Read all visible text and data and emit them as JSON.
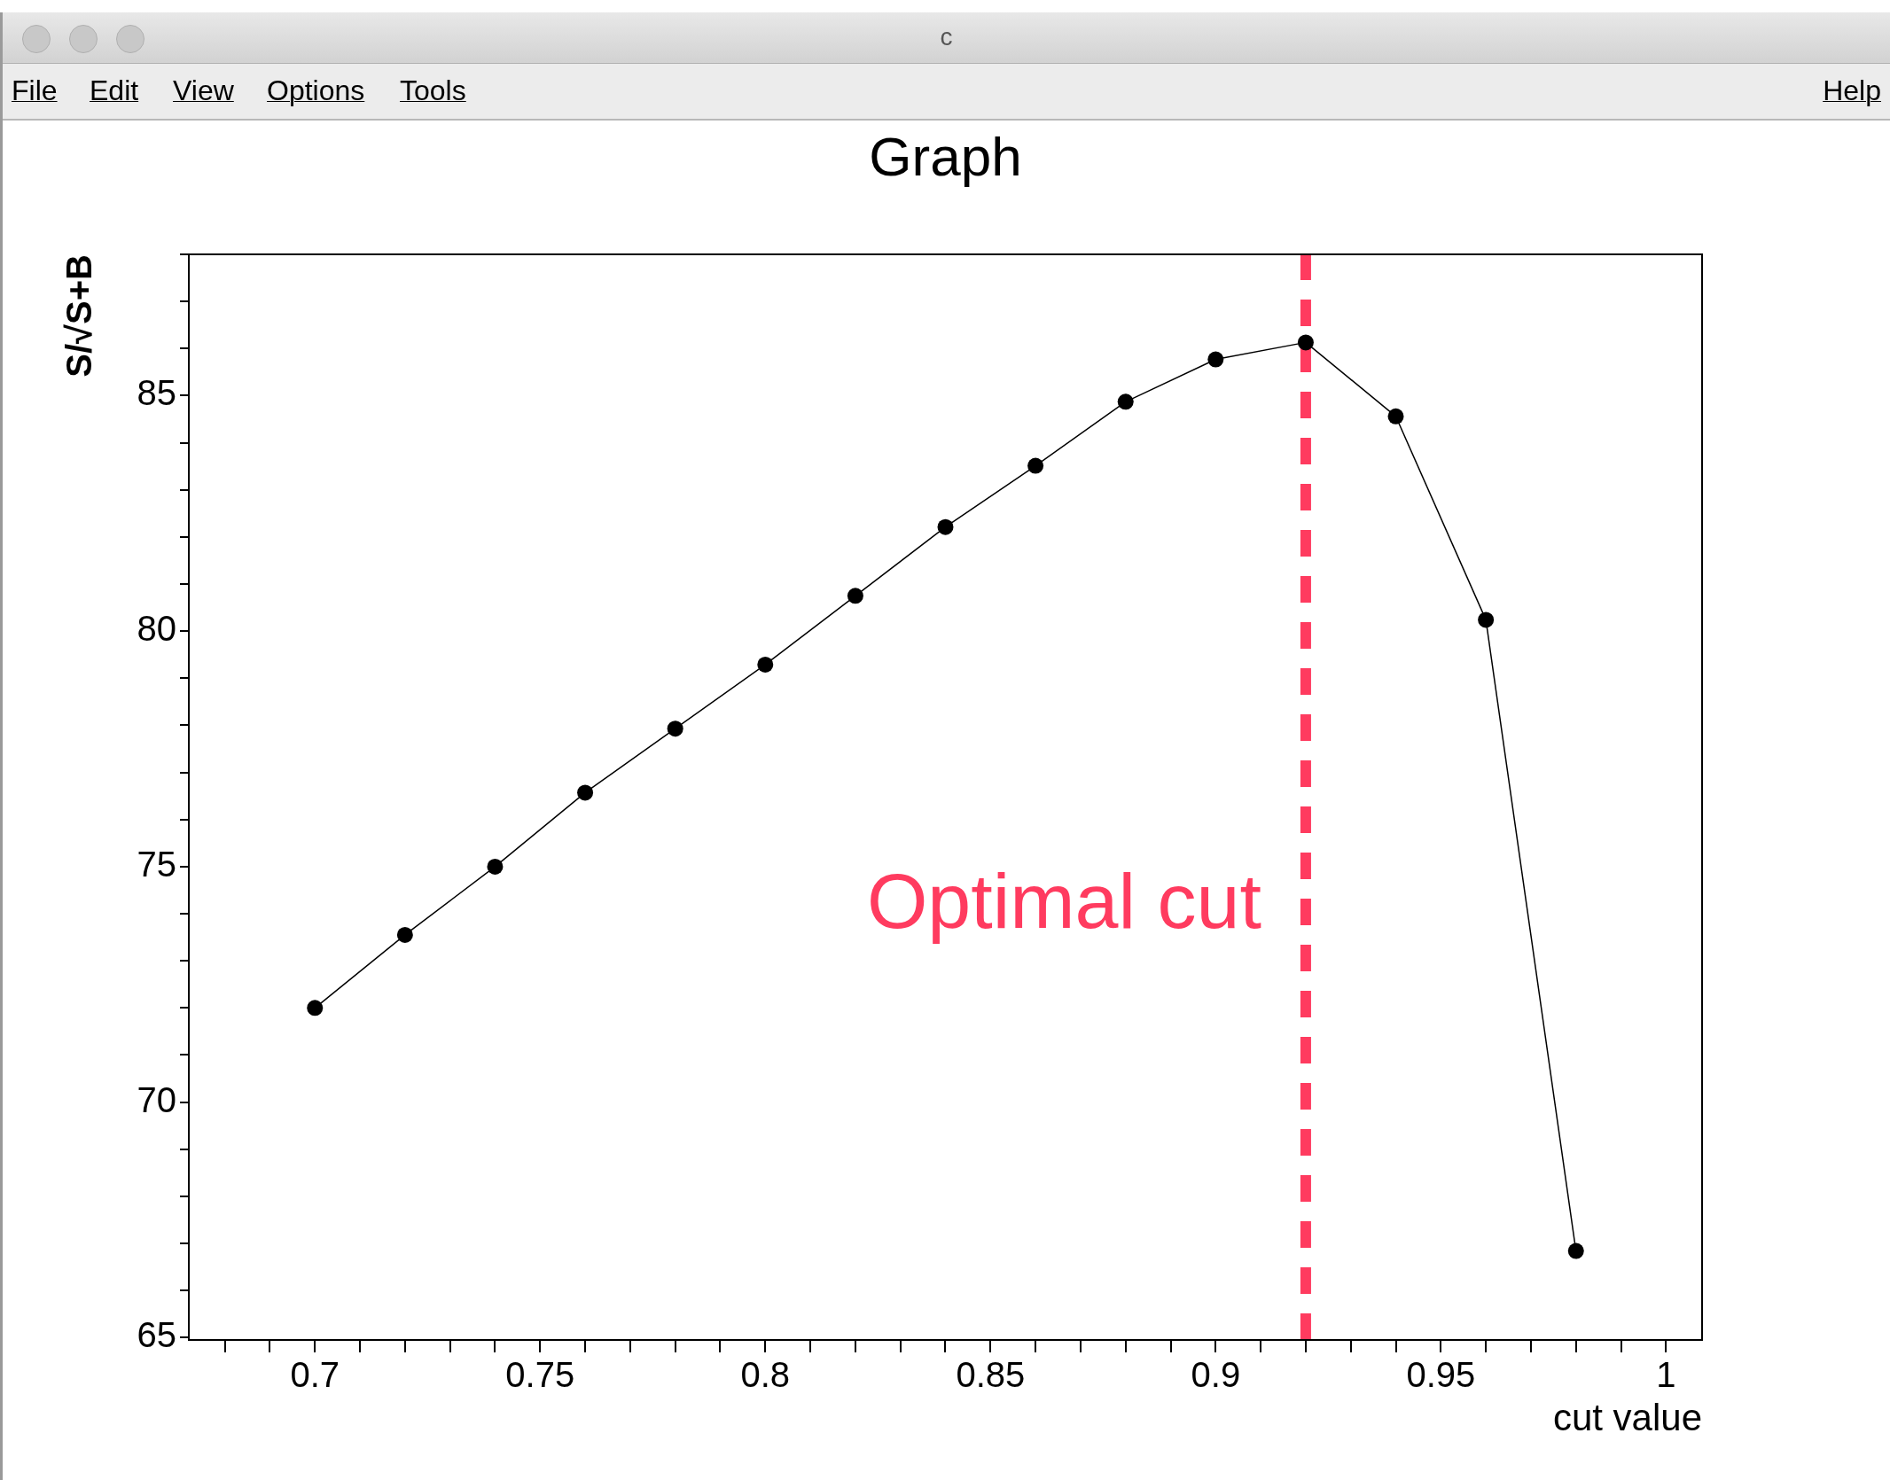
{
  "chart_data": {
    "type": "line",
    "title": "Graph",
    "xlabel": "cut value",
    "ylabel": "S/√S+B",
    "x": [
      0.7,
      0.72,
      0.74,
      0.76,
      0.78,
      0.8,
      0.82,
      0.84,
      0.86,
      0.88,
      0.9,
      0.92,
      0.94,
      0.96,
      0.98
    ],
    "series": [
      {
        "color": "#000000",
        "values": [
          72.0,
          73.55,
          75.0,
          76.57,
          77.93,
          79.29,
          80.75,
          82.21,
          83.51,
          84.87,
          85.77,
          86.13,
          84.56,
          80.24,
          66.84
        ]
      }
    ],
    "xlim": [
      0.672,
      1.008
    ],
    "xticks": [
      {
        "value": 0.68,
        "label": null
      },
      {
        "value": 0.69,
        "label": null
      },
      0.7,
      {
        "value": 0.71,
        "label": null
      },
      {
        "value": 0.72,
        "label": null
      },
      {
        "value": 0.73,
        "label": null
      },
      {
        "value": 0.74,
        "label": null
      },
      0.75,
      {
        "value": 0.76,
        "label": null
      },
      {
        "value": 0.77,
        "label": null
      },
      {
        "value": 0.78,
        "label": null
      },
      {
        "value": 0.79,
        "label": null
      },
      0.8,
      {
        "value": 0.81,
        "label": null
      },
      {
        "value": 0.82,
        "label": null
      },
      {
        "value": 0.83,
        "label": null
      },
      {
        "value": 0.84,
        "label": null
      },
      0.85,
      {
        "value": 0.86,
        "label": null
      },
      {
        "value": 0.87,
        "label": null
      },
      {
        "value": 0.88,
        "label": null
      },
      {
        "value": 0.89,
        "label": null
      },
      0.9,
      {
        "value": 0.91,
        "label": null
      },
      {
        "value": 0.92,
        "label": null
      },
      {
        "value": 0.93,
        "label": null
      },
      {
        "value": 0.94,
        "label": null
      },
      0.95,
      {
        "value": 0.96,
        "label": null
      },
      {
        "value": 0.97,
        "label": null
      },
      {
        "value": 0.98,
        "label": null
      },
      {
        "value": 0.99,
        "label": null
      },
      1
    ],
    "ylim": [
      64.95,
      88.0
    ],
    "yticks": [
      65,
      {
        "value": 66,
        "label": null
      },
      {
        "value": 67,
        "label": null
      },
      {
        "value": 68,
        "label": null
      },
      {
        "value": 69,
        "label": null
      },
      70,
      {
        "value": 71,
        "label": null
      },
      {
        "value": 72,
        "label": null
      },
      {
        "value": 73,
        "label": null
      },
      {
        "value": 74,
        "label": null
      },
      75,
      {
        "value": 76,
        "label": null
      },
      {
        "value": 77,
        "label": null
      },
      {
        "value": 78,
        "label": null
      },
      {
        "value": 79,
        "label": null
      },
      80,
      {
        "value": 81,
        "label": null
      },
      {
        "value": 82,
        "label": null
      },
      {
        "value": 83,
        "label": null
      },
      {
        "value": 84,
        "label": null
      },
      85,
      {
        "value": 86,
        "label": null
      },
      {
        "value": 87,
        "label": null
      },
      {
        "value": 88,
        "label": null
      }
    ],
    "ref_lines": [
      {
        "axis": "x",
        "value": 0.92,
        "label": "Optimal cut",
        "color": "#ff3b5f",
        "line_style": "dashed"
      }
    ],
    "annotations": [
      "c",
      "File",
      "Edit",
      "View",
      "Options",
      "Tools",
      "Help"
    ],
    "marker": "circle",
    "line_style": "solid",
    "grid": false,
    "legend": false
  }
}
